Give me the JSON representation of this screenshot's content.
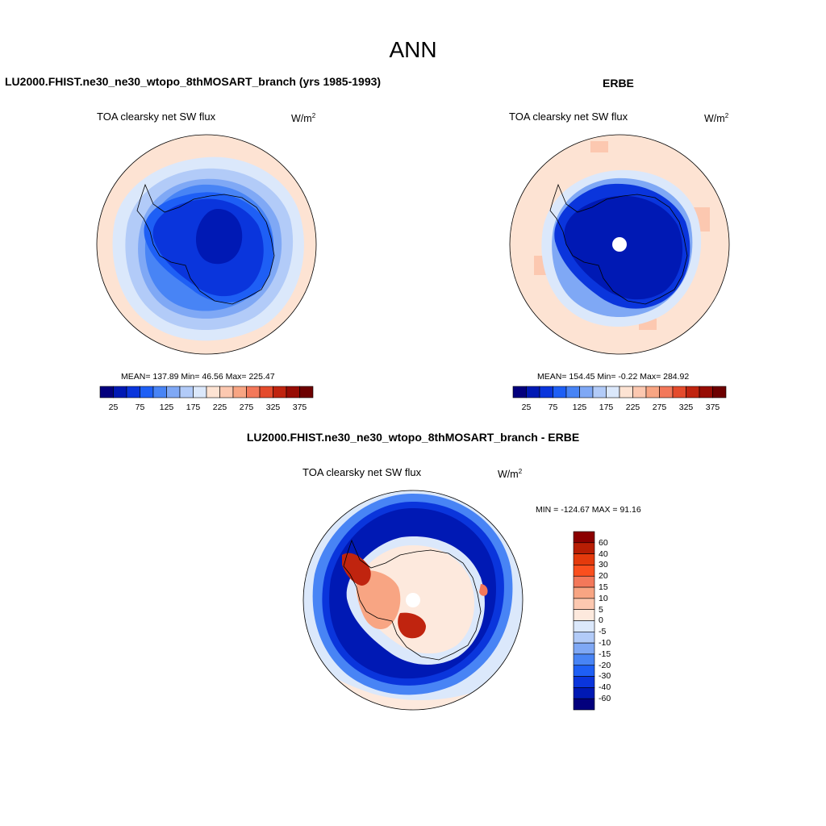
{
  "title": "ANN",
  "colors": {
    "abs_scale": [
      "#03007d",
      "#0019b4",
      "#0a35dc",
      "#1e5ff5",
      "#4884f5",
      "#7fa8f5",
      "#b2cbf8",
      "#dbe8fb",
      "#fde3d3",
      "#fcc8b0",
      "#f8a583",
      "#f3785a",
      "#e44b2c",
      "#c0240f",
      "#970c04",
      "#6d0000"
    ],
    "diff_scale": [
      "#03007d",
      "#0019b4",
      "#0a35dc",
      "#1e5ff5",
      "#4884f5",
      "#7fa8f5",
      "#b2cbf8",
      "#dbe8fb",
      "#fde9dd",
      "#fcc8b0",
      "#f8a583",
      "#f3785a",
      "#fa4f1e",
      "#e43a0c",
      "#b81e04",
      "#8b0000"
    ]
  },
  "panels": {
    "model": {
      "title": "LU2000.FHIST.ne30_ne30_wtopo_8thMOSART_branch (yrs 1985-1993)",
      "subtitle": "TOA clearsky net SW flux",
      "units_base": "W/m",
      "units_exp": "2",
      "stats": "MEAN= 137.89  Min=  46.56  Max= 225.47"
    },
    "obs": {
      "title": "ERBE",
      "subtitle": "TOA clearsky net SW flux",
      "units_base": "W/m",
      "units_exp": "2",
      "stats": "MEAN= 154.45  Min=  -0.22  Max= 284.92"
    },
    "diff": {
      "title": "LU2000.FHIST.ne30_ne30_wtopo_8thMOSART_branch - ERBE",
      "subtitle": "TOA clearsky net SW flux",
      "units_base": "W/m",
      "units_exp": "2",
      "stats": "MIN = -124.67 MAX =  91.16"
    }
  },
  "labelbar_abs": {
    "labels": [
      "25",
      "75",
      "125",
      "175",
      "225",
      "275",
      "325",
      "375"
    ]
  },
  "labelbar_diff": {
    "labels": [
      "60",
      "40",
      "30",
      "20",
      "15",
      "10",
      "5",
      "0",
      "-5",
      "-10",
      "-15",
      "-20",
      "-30",
      "-40",
      "-60"
    ]
  }
}
